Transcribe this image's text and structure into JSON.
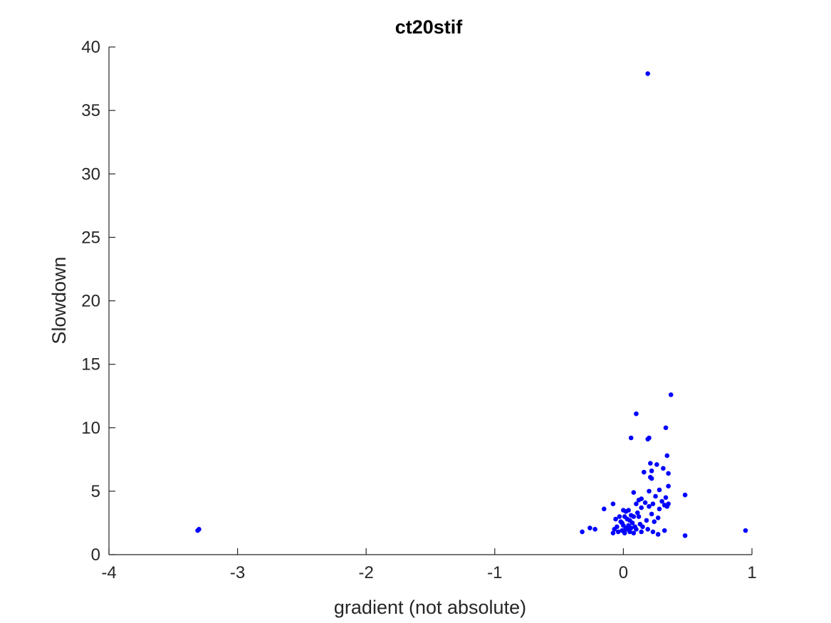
{
  "chart_data": {
    "type": "scatter",
    "title": "ct20stif",
    "xlabel": "gradient (not absolute)",
    "ylabel": "Slowdown",
    "xlim": [
      -4,
      1
    ],
    "ylim": [
      0,
      40
    ],
    "xticks": [
      -4,
      -3,
      -2,
      -1,
      0,
      1
    ],
    "yticks": [
      0,
      5,
      10,
      15,
      20,
      25,
      30,
      35,
      40
    ],
    "xtick_labels": [
      "-4",
      "-3",
      "-2",
      "-1",
      "0",
      "1"
    ],
    "ytick_labels": [
      "0",
      "5",
      "10",
      "15",
      "20",
      "25",
      "30",
      "35",
      "40"
    ],
    "grid": false,
    "marker_color": "#0000ff",
    "axis_color": "#262626",
    "series": [
      {
        "points": [
          [
            -3.31,
            1.9
          ],
          [
            -3.3,
            2.0
          ],
          [
            0.19,
            37.9
          ],
          [
            0.37,
            12.6
          ],
          [
            0.1,
            11.1
          ],
          [
            0.33,
            10.0
          ],
          [
            0.06,
            9.2
          ],
          [
            0.19,
            9.1
          ],
          [
            0.2,
            9.2
          ],
          [
            0.34,
            7.8
          ],
          [
            0.21,
            7.2
          ],
          [
            0.26,
            7.1
          ],
          [
            0.31,
            6.8
          ],
          [
            0.16,
            6.5
          ],
          [
            0.22,
            6.6
          ],
          [
            0.35,
            6.4
          ],
          [
            0.21,
            6.1
          ],
          [
            0.22,
            6.0
          ],
          [
            0.35,
            5.4
          ],
          [
            0.28,
            5.1
          ],
          [
            0.2,
            5.0
          ],
          [
            0.08,
            4.9
          ],
          [
            0.48,
            4.7
          ],
          [
            0.25,
            4.6
          ],
          [
            0.33,
            4.5
          ],
          [
            0.14,
            4.4
          ],
          [
            0.12,
            4.3
          ],
          [
            0.3,
            4.2
          ],
          [
            0.1,
            4.0
          ],
          [
            0.23,
            4.0
          ],
          [
            0.35,
            4.0
          ],
          [
            0.17,
            4.1
          ],
          [
            0.32,
            3.9
          ],
          [
            -0.08,
            4.0
          ],
          [
            0.34,
            3.8
          ],
          [
            0.2,
            3.8
          ],
          [
            0.14,
            3.7
          ],
          [
            0.28,
            3.6
          ],
          [
            -0.15,
            3.6
          ],
          [
            0.0,
            3.5
          ],
          [
            0.02,
            3.4
          ],
          [
            0.04,
            3.5
          ],
          [
            0.11,
            3.3
          ],
          [
            0.22,
            3.2
          ],
          [
            0.06,
            3.1
          ],
          [
            0.01,
            3.0
          ],
          [
            -0.03,
            3.0
          ],
          [
            0.08,
            3.0
          ],
          [
            0.12,
            3.0
          ],
          [
            0.27,
            2.9
          ],
          [
            0.03,
            2.8
          ],
          [
            -0.06,
            2.8
          ],
          [
            0.05,
            2.7
          ],
          [
            0.18,
            2.7
          ],
          [
            0.24,
            2.6
          ],
          [
            -0.01,
            2.5
          ],
          [
            0.07,
            2.5
          ],
          [
            0.13,
            2.4
          ],
          [
            0.0,
            2.3
          ],
          [
            0.04,
            2.3
          ],
          [
            -0.05,
            2.2
          ],
          [
            0.09,
            2.2
          ],
          [
            0.02,
            2.1
          ],
          [
            -0.26,
            2.1
          ],
          [
            -0.22,
            2.0
          ],
          [
            -0.07,
            2.0
          ],
          [
            0.03,
            2.0
          ],
          [
            0.1,
            2.0
          ],
          [
            0.19,
            2.0
          ],
          [
            0.0,
            1.9
          ],
          [
            0.32,
            1.9
          ],
          [
            0.95,
            1.9
          ],
          [
            -0.32,
            1.8
          ],
          [
            -0.04,
            1.8
          ],
          [
            0.05,
            1.8
          ],
          [
            0.14,
            1.8
          ],
          [
            0.23,
            1.8
          ],
          [
            -0.08,
            1.7
          ],
          [
            0.01,
            1.7
          ],
          [
            0.08,
            1.7
          ],
          [
            0.27,
            1.6
          ],
          [
            0.48,
            1.5
          ],
          [
            -0.01,
            1.9
          ],
          [
            0.06,
            2.1
          ],
          [
            -0.02,
            2.6
          ],
          [
            0.15,
            2.2
          ]
        ]
      }
    ]
  }
}
